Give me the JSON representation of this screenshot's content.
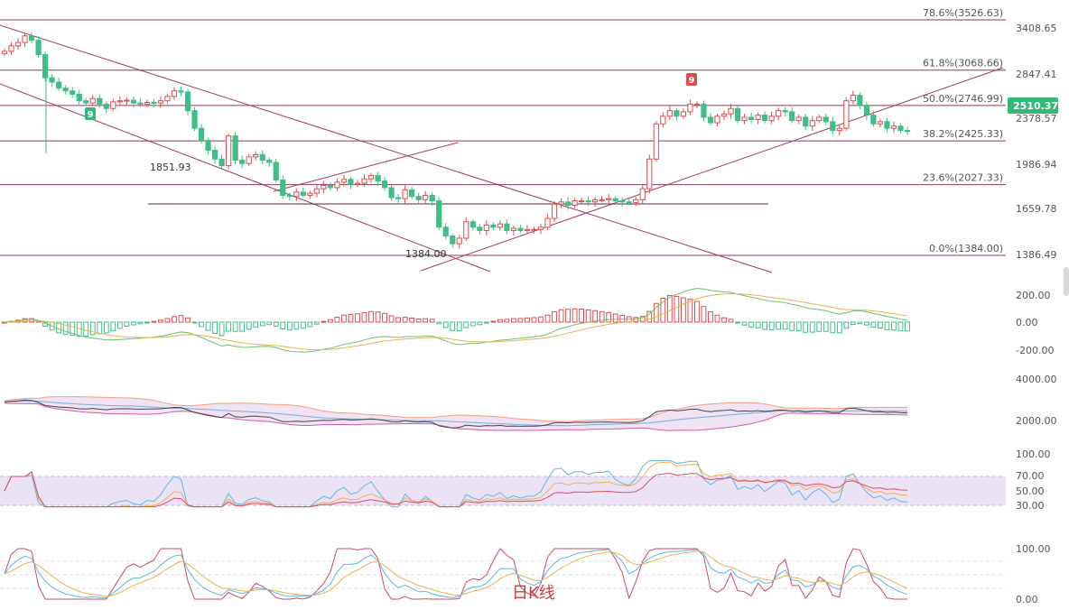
{
  "chart_data": {
    "type": "candlestick",
    "watermark": "日K线",
    "last_price": "2510.37",
    "colors": {
      "up": "#dd4d4d",
      "down": "#3dbf86",
      "fib": "#8e3a5a",
      "channel": "#a23b5b",
      "last_price_bg": "#35b779"
    },
    "y_ticks": [
      "3408.65",
      "2847.41",
      "2378.57",
      "1986.94",
      "1659.78",
      "1386.49"
    ],
    "fib_levels": [
      {
        "label": "78.6%(3526.63)",
        "value": 3526.63
      },
      {
        "label": "61.8%(3068.66)",
        "value": 3068.66
      },
      {
        "label": "50.0%(2746.99)",
        "value": 2746.99
      },
      {
        "label": "38.2%(2425.33)",
        "value": 2425.33
      },
      {
        "label": "23.6%(2027.33)",
        "value": 2027.33
      },
      {
        "label": "0.0%(1384.00)",
        "value": 1384.0
      }
    ],
    "annotations": [
      {
        "text": "1851.93",
        "value": 1851.93
      },
      {
        "text": "1384.00",
        "value": 1384.0
      }
    ],
    "markers": [
      "9",
      "9"
    ],
    "closes": [
      3240,
      3290,
      3320,
      3380,
      3340,
      3210,
      3000,
      2960,
      2905,
      2880,
      2850,
      2790,
      2770,
      2810,
      2760,
      2720,
      2780,
      2790,
      2795,
      2770,
      2760,
      2775,
      2770,
      2790,
      2830,
      2880,
      2870,
      2700,
      2540,
      2430,
      2340,
      2260,
      2200,
      2470,
      2250,
      2220,
      2280,
      2300,
      2250,
      2230,
      2070,
      1930,
      1920,
      1960,
      1930,
      1950,
      1990,
      2020,
      2000,
      2050,
      2075,
      2030,
      2040,
      2080,
      2110,
      2060,
      2000,
      1910,
      1900,
      1980,
      1920,
      1890,
      1930,
      1880,
      1640,
      1560,
      1490,
      1540,
      1690,
      1640,
      1610,
      1660,
      1640,
      1670,
      1610,
      1630,
      1610,
      1620,
      1620,
      1640,
      1720,
      1850,
      1870,
      1840,
      1880,
      1880,
      1870,
      1890,
      1890,
      1900,
      1880,
      1870,
      1865,
      1890,
      1990,
      2260,
      2580,
      2650,
      2700,
      2650,
      2690,
      2760,
      2760,
      2640,
      2590,
      2650,
      2670,
      2720,
      2610,
      2640,
      2620,
      2660,
      2610,
      2650,
      2700,
      2690,
      2610,
      2640,
      2560,
      2610,
      2640,
      2600,
      2520,
      2540,
      2790,
      2840,
      2750,
      2660,
      2580,
      2600,
      2540,
      2560,
      2520,
      2511
    ],
    "panels": [
      {
        "name": "macd",
        "ticks": [
          "200.00",
          "0.00",
          "-200.00"
        ]
      },
      {
        "name": "boll",
        "ticks": [
          "4000.00",
          "2000.00"
        ]
      },
      {
        "name": "rsi",
        "ticks": [
          "100.00",
          "70.00",
          "50.00",
          "30.00"
        ]
      },
      {
        "name": "kdj",
        "ticks": [
          "100.00",
          "0.00"
        ]
      }
    ]
  }
}
